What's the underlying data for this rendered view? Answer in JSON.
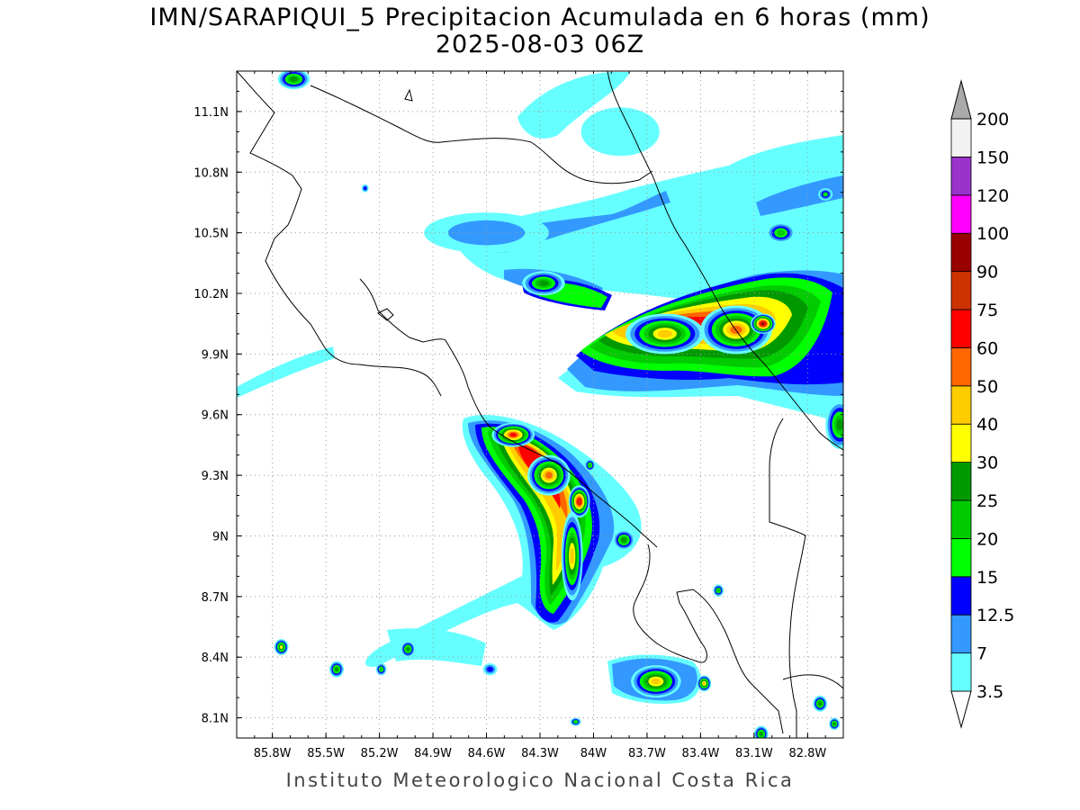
{
  "title": {
    "line1": "IMN/SARAPIQUI_5 Precipitacion Acumulada en 6 horas (mm)",
    "line2": "2025-08-03 06Z"
  },
  "footer": "Instituto Meteorologico Nacional Costa Rica",
  "axes": {
    "lon_range": [
      -86.0,
      -82.6
    ],
    "lat_range": [
      8.0,
      11.3
    ],
    "lon_ticks": [
      {
        "value": -85.8,
        "label": "85.8W"
      },
      {
        "value": -85.5,
        "label": "85.5W"
      },
      {
        "value": -85.2,
        "label": "85.2W"
      },
      {
        "value": -84.9,
        "label": "84.9W"
      },
      {
        "value": -84.6,
        "label": "84.6W"
      },
      {
        "value": -84.3,
        "label": "84.3W"
      },
      {
        "value": -84.0,
        "label": "84W"
      },
      {
        "value": -83.7,
        "label": "83.7W"
      },
      {
        "value": -83.4,
        "label": "83.4W"
      },
      {
        "value": -83.1,
        "label": "83.1W"
      },
      {
        "value": -82.8,
        "label": "82.8W"
      }
    ],
    "lat_ticks": [
      {
        "value": 8.1,
        "label": "8.1N"
      },
      {
        "value": 8.4,
        "label": "8.4N"
      },
      {
        "value": 8.7,
        "label": "8.7N"
      },
      {
        "value": 9.0,
        "label": "9N"
      },
      {
        "value": 9.3,
        "label": "9.3N"
      },
      {
        "value": 9.6,
        "label": "9.6N"
      },
      {
        "value": 9.9,
        "label": "9.9N"
      },
      {
        "value": 10.2,
        "label": "10.2N"
      },
      {
        "value": 10.5,
        "label": "10.5N"
      },
      {
        "value": 10.8,
        "label": "10.8N"
      },
      {
        "value": 11.1,
        "label": "11.1N"
      }
    ],
    "grid": true
  },
  "colorbar": {
    "levels": [
      {
        "label": "3.5",
        "color": "#66ffff"
      },
      {
        "label": "7",
        "color": "#3399ff"
      },
      {
        "label": "12.5",
        "color": "#0000ff"
      },
      {
        "label": "15",
        "color": "#00ff00"
      },
      {
        "label": "20",
        "color": "#00cc00"
      },
      {
        "label": "25",
        "color": "#009900"
      },
      {
        "label": "30",
        "color": "#ffff00"
      },
      {
        "label": "40",
        "color": "#ffcc00"
      },
      {
        "label": "50",
        "color": "#ff6600"
      },
      {
        "label": "60",
        "color": "#ff0000"
      },
      {
        "label": "75",
        "color": "#cc3300"
      },
      {
        "label": "90",
        "color": "#990000"
      },
      {
        "label": "100",
        "color": "#ff00ff"
      },
      {
        "label": "120",
        "color": "#9933cc"
      },
      {
        "label": "150",
        "color": "#f2f2f2"
      },
      {
        "label": "200",
        "color": "#aaaaaa"
      }
    ]
  },
  "precip_cells": [
    {
      "lon": -85.68,
      "lat": 11.26,
      "rx": 0.09,
      "ry": 0.05,
      "level": 5
    },
    {
      "lon": -83.85,
      "lat": 11.0,
      "rx": 0.22,
      "ry": 0.12,
      "level": 0
    },
    {
      "lon": -84.6,
      "lat": 10.5,
      "rx": 0.35,
      "ry": 0.1,
      "level": 1
    },
    {
      "lon": -84.28,
      "lat": 10.25,
      "rx": 0.12,
      "ry": 0.06,
      "level": 5
    },
    {
      "lon": -83.6,
      "lat": 10.0,
      "rx": 0.22,
      "ry": 0.1,
      "level": 7
    },
    {
      "lon": -83.2,
      "lat": 10.02,
      "rx": 0.2,
      "ry": 0.12,
      "level": 8
    },
    {
      "lon": -83.05,
      "lat": 10.05,
      "rx": 0.07,
      "ry": 0.05,
      "level": 11
    },
    {
      "lon": -82.95,
      "lat": 10.5,
      "rx": 0.08,
      "ry": 0.05,
      "level": 4
    },
    {
      "lon": -82.62,
      "lat": 9.55,
      "rx": 0.08,
      "ry": 0.12,
      "level": 5
    },
    {
      "lon": -84.45,
      "lat": 9.5,
      "rx": 0.12,
      "ry": 0.06,
      "level": 9
    },
    {
      "lon": -84.25,
      "lat": 9.3,
      "rx": 0.12,
      "ry": 0.1,
      "level": 8
    },
    {
      "lon": -84.08,
      "lat": 9.17,
      "rx": 0.06,
      "ry": 0.08,
      "level": 10
    },
    {
      "lon": -84.12,
      "lat": 8.9,
      "rx": 0.06,
      "ry": 0.22,
      "level": 7
    },
    {
      "lon": -83.83,
      "lat": 8.98,
      "rx": 0.06,
      "ry": 0.05,
      "level": 5
    },
    {
      "lon": -84.02,
      "lat": 9.35,
      "rx": 0.03,
      "ry": 0.03,
      "level": 4
    },
    {
      "lon": -85.75,
      "lat": 8.45,
      "rx": 0.04,
      "ry": 0.04,
      "level": 6
    },
    {
      "lon": -85.44,
      "lat": 8.34,
      "rx": 0.04,
      "ry": 0.04,
      "level": 5
    },
    {
      "lon": -85.19,
      "lat": 8.34,
      "rx": 0.03,
      "ry": 0.03,
      "level": 4
    },
    {
      "lon": -85.04,
      "lat": 8.44,
      "rx": 0.04,
      "ry": 0.04,
      "level": 5
    },
    {
      "lon": -84.58,
      "lat": 8.34,
      "rx": 0.04,
      "ry": 0.03,
      "level": 2
    },
    {
      "lon": -83.65,
      "lat": 8.28,
      "rx": 0.14,
      "ry": 0.08,
      "level": 7
    },
    {
      "lon": -83.38,
      "lat": 8.27,
      "rx": 0.04,
      "ry": 0.04,
      "level": 7
    },
    {
      "lon": -83.3,
      "lat": 8.73,
      "rx": 0.03,
      "ry": 0.03,
      "level": 4
    },
    {
      "lon": -83.06,
      "lat": 8.02,
      "rx": 0.04,
      "ry": 0.04,
      "level": 5
    },
    {
      "lon": -82.73,
      "lat": 8.17,
      "rx": 0.04,
      "ry": 0.04,
      "level": 5
    },
    {
      "lon": -82.65,
      "lat": 8.07,
      "rx": 0.03,
      "ry": 0.03,
      "level": 5
    },
    {
      "lon": -84.1,
      "lat": 8.08,
      "rx": 0.03,
      "ry": 0.02,
      "level": 4
    },
    {
      "lon": -85.28,
      "lat": 10.72,
      "rx": 0.02,
      "ry": 0.02,
      "level": 2
    },
    {
      "lon": -82.7,
      "lat": 10.69,
      "rx": 0.04,
      "ry": 0.03,
      "level": 3
    }
  ]
}
